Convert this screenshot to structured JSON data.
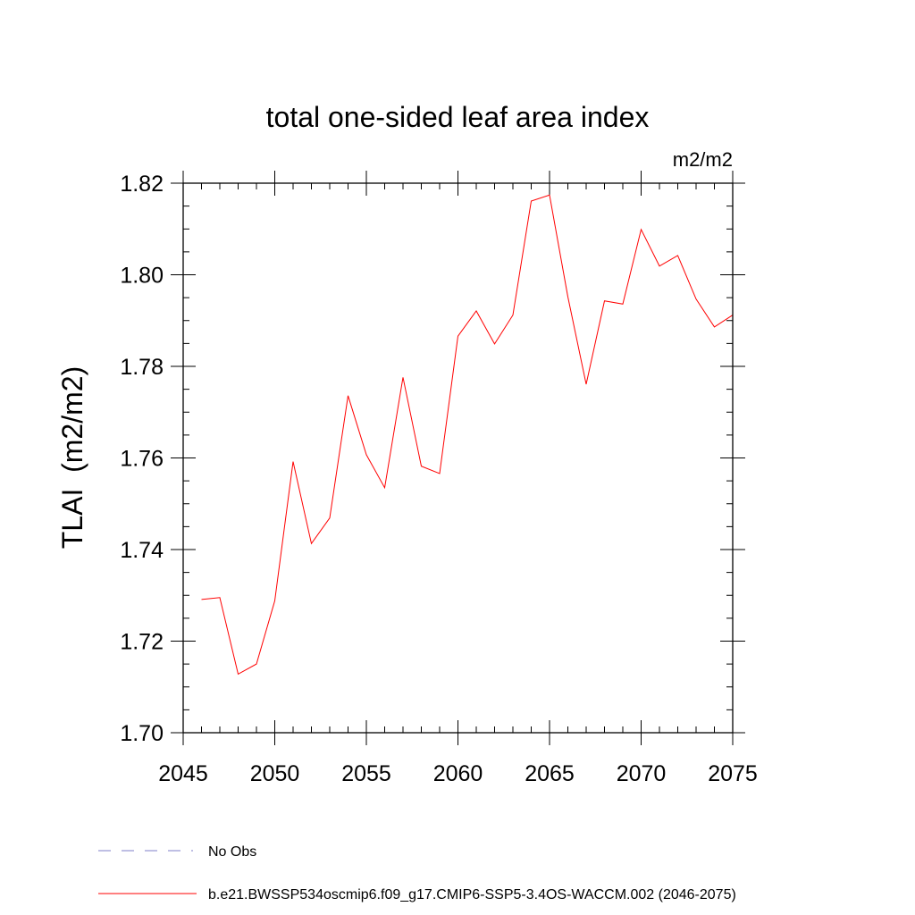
{
  "chart_data": {
    "type": "line",
    "title": "total one-sided leaf area index",
    "units": "m2/m2",
    "ylabel": "TLAI  (m2/m2)",
    "xlabel": "",
    "xlim": [
      2045,
      2075
    ],
    "ylim": [
      1.7,
      1.82
    ],
    "x_ticks": [
      2045,
      2050,
      2055,
      2060,
      2065,
      2070,
      2075
    ],
    "x_tick_labels": [
      "2045",
      "2050",
      "2055",
      "2060",
      "2065",
      "2070",
      "2075"
    ],
    "y_ticks": [
      1.7,
      1.72,
      1.74,
      1.76,
      1.78,
      1.8,
      1.82
    ],
    "y_tick_labels": [
      "1.70",
      "1.72",
      "1.74",
      "1.76",
      "1.78",
      "1.80",
      "1.82"
    ],
    "x_minor_step": 1,
    "y_minor_step": 0.005,
    "grid": false,
    "legend_position": "bottom",
    "series": [
      {
        "name": "b.e21.BWSSP534oscmip6.f09_g17.CMIP6-SSP5-3.4OS-WACCM.002 (2046-2075)",
        "color": "#ff0000",
        "style": "solid",
        "x": [
          2046,
          2047,
          2048,
          2049,
          2050,
          2051,
          2052,
          2053,
          2054,
          2055,
          2056,
          2057,
          2058,
          2059,
          2060,
          2061,
          2062,
          2063,
          2064,
          2065,
          2066,
          2067,
          2068,
          2069,
          2070,
          2071,
          2072,
          2073,
          2074,
          2075
        ],
        "values": [
          1.7291,
          1.7295,
          1.7128,
          1.715,
          1.7288,
          1.7592,
          1.7413,
          1.7469,
          1.7736,
          1.7607,
          1.7535,
          1.7776,
          1.7582,
          1.7566,
          1.7866,
          1.7921,
          1.7849,
          1.7912,
          1.8161,
          1.8174,
          1.7952,
          1.7761,
          1.7943,
          1.7936,
          1.8099,
          1.8019,
          1.8042,
          1.7947,
          1.7886,
          1.7912
        ]
      }
    ],
    "legend": [
      {
        "label": "No Obs",
        "color": "#7f7fc8",
        "style": "dashed"
      },
      {
        "label": "b.e21.BWSSP534oscmip6.f09_g17.CMIP6-SSP5-3.4OS-WACCM.002 (2046-2075)",
        "color": "#ff0000",
        "style": "solid"
      }
    ]
  }
}
